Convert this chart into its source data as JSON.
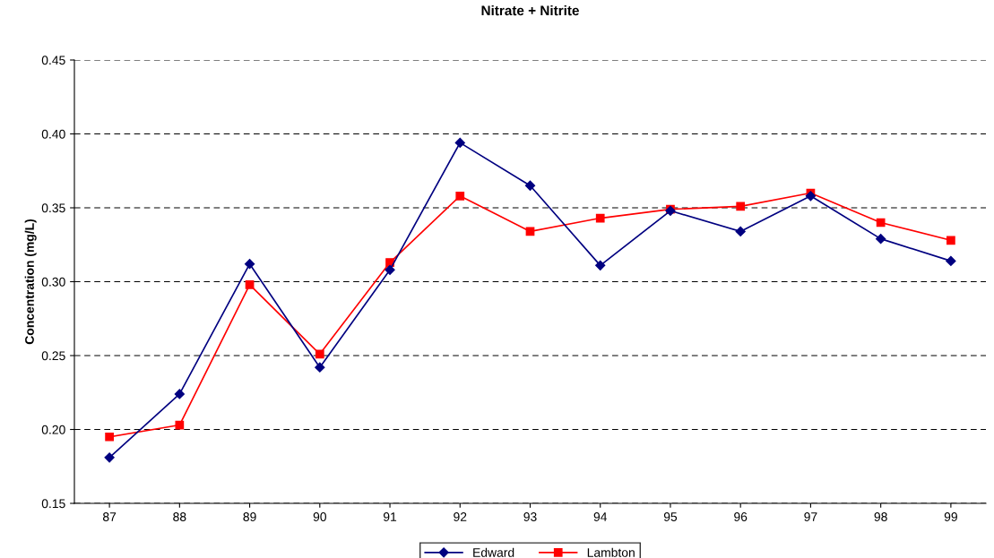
{
  "chart_data": {
    "type": "line",
    "title": "Nitrate + Nitrite",
    "ylabel": "Concentration (mg/L)",
    "categories": [
      "87",
      "88",
      "89",
      "90",
      "91",
      "92",
      "93",
      "94",
      "95",
      "96",
      "97",
      "98",
      "99"
    ],
    "series": [
      {
        "name": "Edward",
        "color": "#000080",
        "marker": "diamond",
        "values": [
          0.181,
          0.224,
          0.312,
          0.242,
          0.308,
          0.394,
          0.365,
          0.311,
          0.348,
          0.334,
          0.358,
          0.329,
          0.314
        ]
      },
      {
        "name": "Lambton",
        "color": "#ff0000",
        "marker": "square",
        "values": [
          0.195,
          0.203,
          0.298,
          0.251,
          0.313,
          0.358,
          0.334,
          0.343,
          0.349,
          0.351,
          0.36,
          0.34,
          0.328
        ]
      }
    ],
    "ylim": [
      0.15,
      0.45
    ],
    "yticks": [
      {
        "value": 0.15,
        "label": "0.15"
      },
      {
        "value": 0.2,
        "label": "0.20"
      },
      {
        "value": 0.25,
        "label": "0.25"
      },
      {
        "value": 0.3,
        "label": "0.30"
      },
      {
        "value": 0.35,
        "label": "0.35"
      },
      {
        "value": 0.4,
        "label": "0.40"
      },
      {
        "value": 0.45,
        "label": "0.45"
      }
    ],
    "grid": "y",
    "legend": "bottom",
    "line_style": "solid"
  }
}
